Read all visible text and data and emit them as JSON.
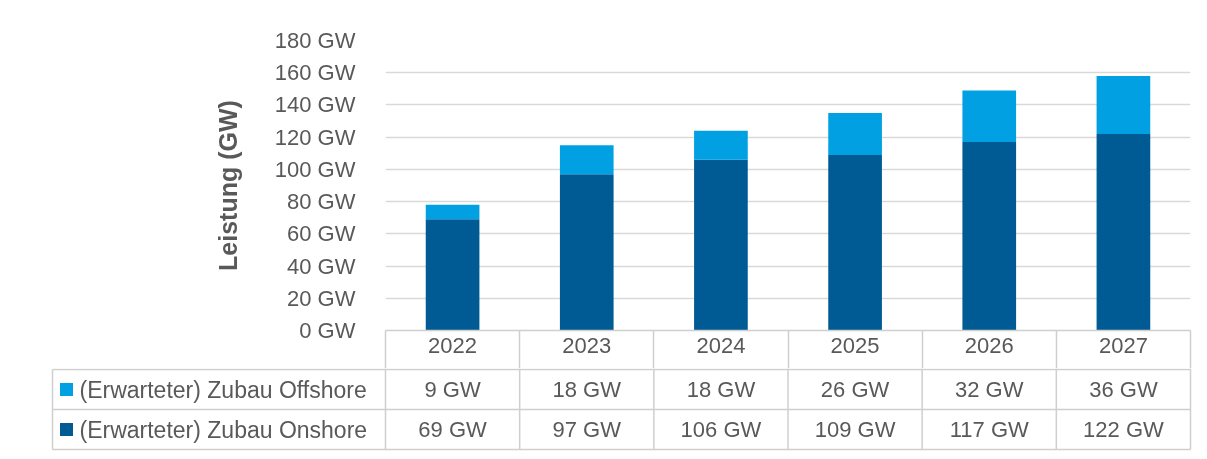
{
  "chart_data": {
    "type": "bar",
    "ylabel": "Leistung (GW)",
    "categories": [
      "2022",
      "2023",
      "2024",
      "2025",
      "2026",
      "2027"
    ],
    "stacked": true,
    "series": [
      {
        "name": "(Erwarteter) Zubau Onshore",
        "color": "#005a94",
        "values": [
          69,
          97,
          106,
          109,
          117,
          122
        ],
        "value_labels": [
          "69 GW",
          "97 GW",
          "106 GW",
          "109 GW",
          "117 GW",
          "122 GW"
        ]
      },
      {
        "name": "(Erwarteter) Zubau Offshore",
        "color": "#00a0e3",
        "values": [
          9,
          18,
          18,
          26,
          32,
          36
        ],
        "value_labels": [
          "9 GW",
          "18 GW",
          "18 GW",
          "26 GW",
          "32 GW",
          "36 GW"
        ]
      }
    ],
    "ylim": [
      0,
      180
    ],
    "yticks": [
      {
        "value": 0,
        "label": "0 GW"
      },
      {
        "value": 20,
        "label": "20 GW"
      },
      {
        "value": 40,
        "label": "40 GW"
      },
      {
        "value": 60,
        "label": "60 GW"
      },
      {
        "value": 80,
        "label": "80 GW"
      },
      {
        "value": 100,
        "label": "100 GW"
      },
      {
        "value": 120,
        "label": "120 GW"
      },
      {
        "value": 140,
        "label": "140 GW"
      },
      {
        "value": 160,
        "label": "160 GW"
      },
      {
        "value": 180,
        "label": "180 GW"
      }
    ],
    "grid": "y",
    "legend": "bottom"
  }
}
